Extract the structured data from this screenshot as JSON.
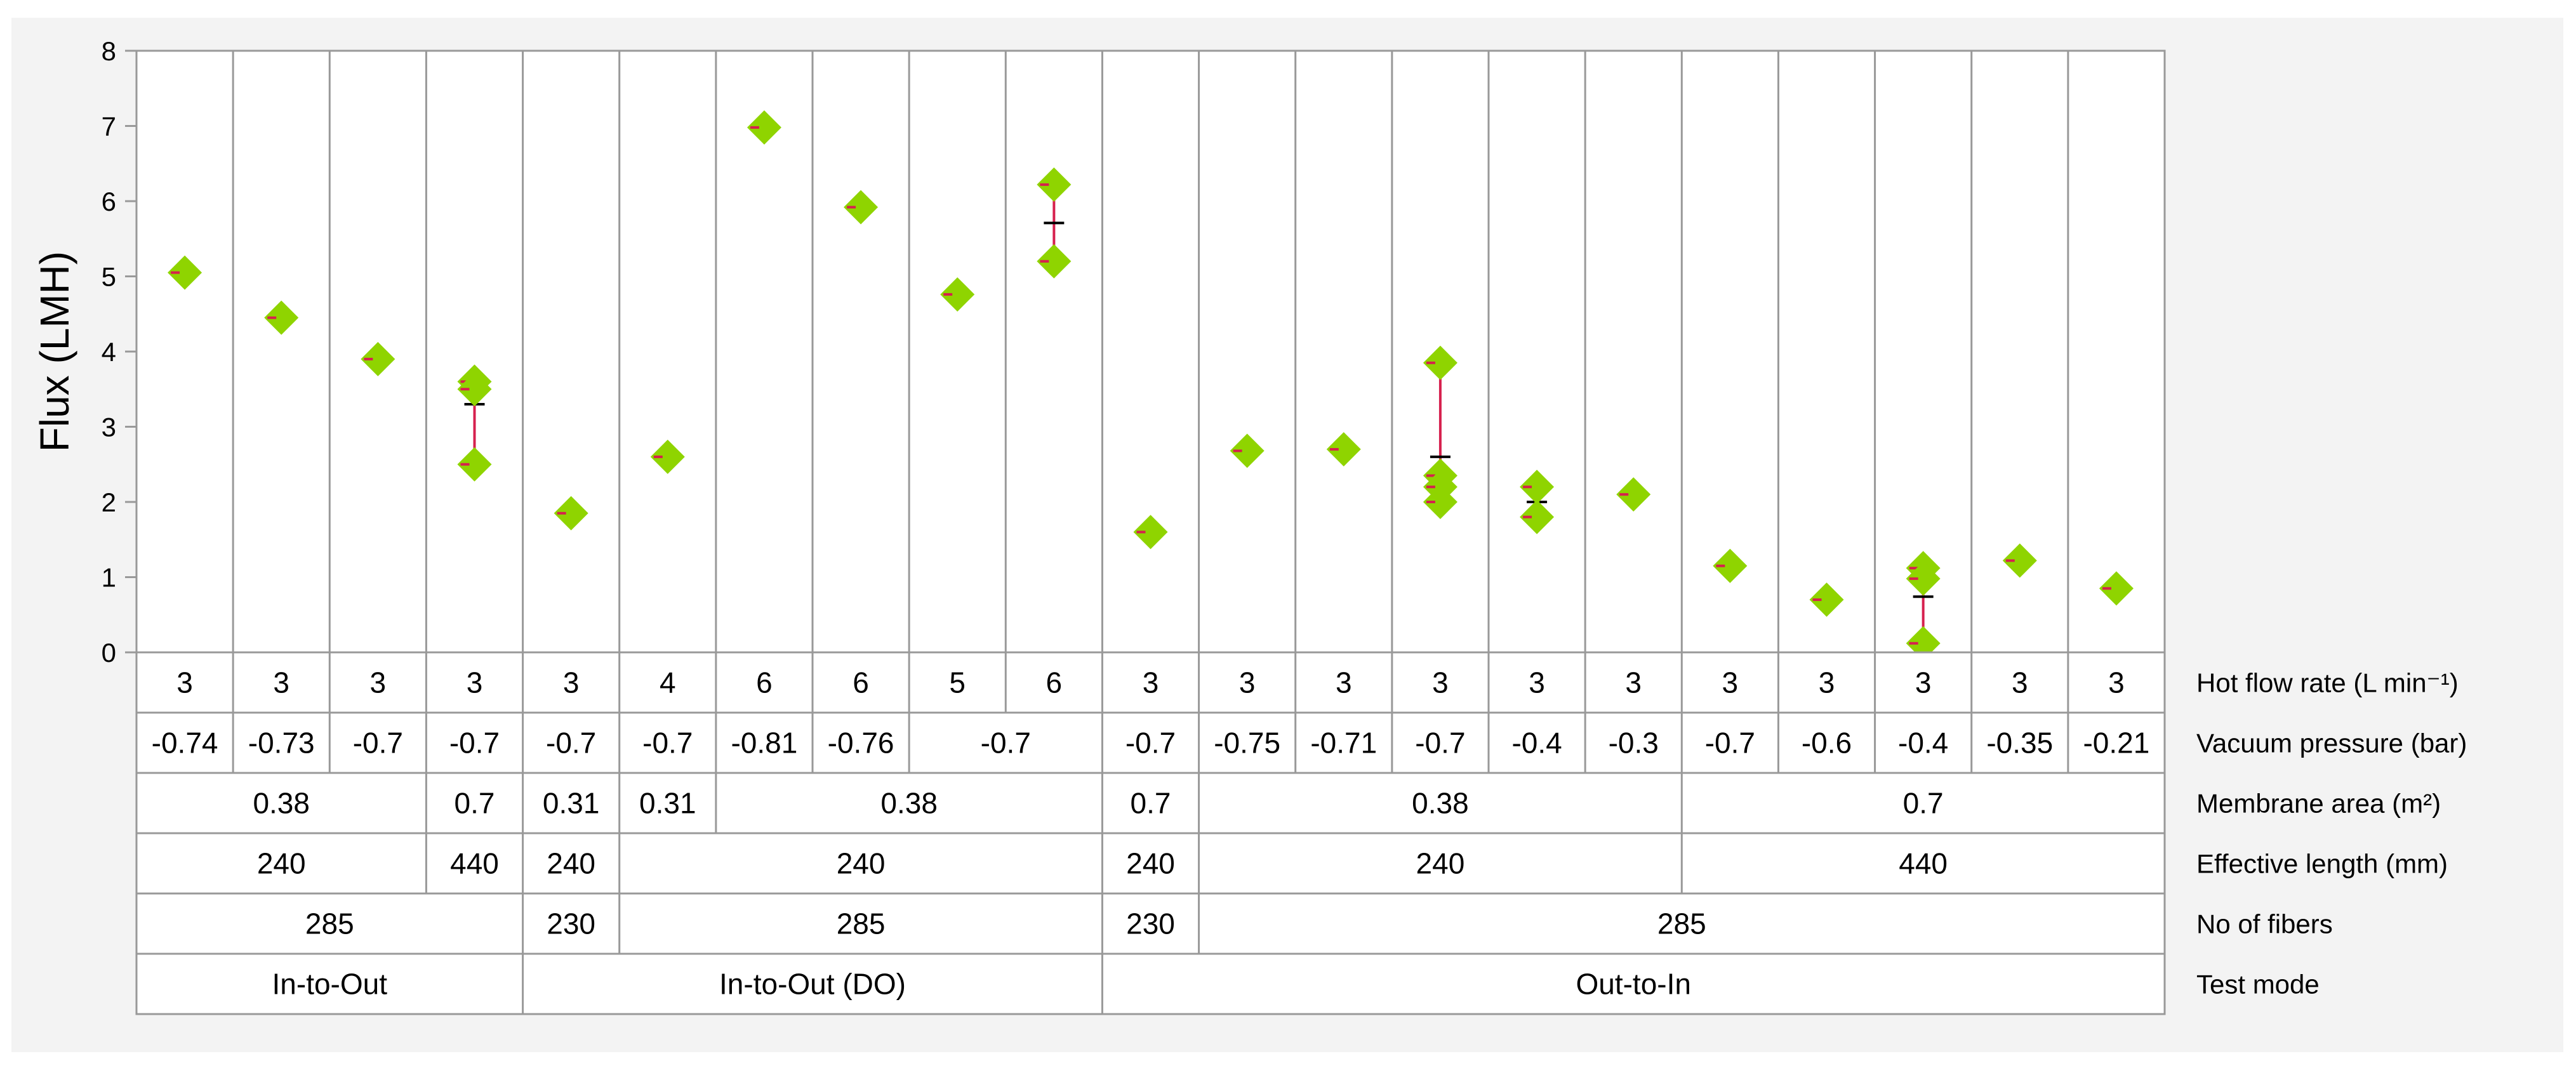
{
  "chart_data": {
    "type": "scatter",
    "ylabel": "Flux (LMH)",
    "ylim": [
      0,
      8
    ],
    "yticks": [
      "0",
      "1",
      "2",
      "3",
      "4",
      "5",
      "6",
      "7",
      "8"
    ],
    "grid": "vertical separators between configurations",
    "colors": {
      "marker": "#8fd400",
      "error_bar": "#d6204e",
      "mean_tick": "#000000",
      "frame": "#999999"
    },
    "columns": [
      {
        "points": [
          5.05
        ]
      },
      {
        "points": [
          4.45
        ]
      },
      {
        "points": [
          3.9
        ]
      },
      {
        "points": [
          3.6,
          3.5,
          2.5
        ],
        "mean": 3.3,
        "range": [
          2.5,
          3.6
        ]
      },
      {
        "points": [
          1.85
        ]
      },
      {
        "points": [
          2.6
        ]
      },
      {
        "points": [
          6.98
        ]
      },
      {
        "points": [
          5.92
        ]
      },
      {
        "points": [
          4.76
        ]
      },
      {
        "points": [
          6.22,
          5.2
        ],
        "mean": 5.71,
        "range": [
          5.2,
          6.22
        ]
      },
      {
        "points": [
          1.6
        ]
      },
      {
        "points": [
          2.68
        ]
      },
      {
        "points": [
          2.7
        ]
      },
      {
        "points": [
          3.85,
          2.35,
          2.2,
          2.0
        ],
        "mean": 2.6,
        "range": [
          2.0,
          3.85
        ]
      },
      {
        "points": [
          2.2,
          1.8
        ],
        "mean": 2.0,
        "range": [
          1.8,
          2.2
        ]
      },
      {
        "points": [
          2.1
        ]
      },
      {
        "points": [
          1.15
        ]
      },
      {
        "points": [
          0.7
        ]
      },
      {
        "points": [
          1.12,
          0.98,
          0.12
        ],
        "mean": 0.74,
        "range": [
          0.12,
          1.1
        ]
      },
      {
        "points": [
          1.22
        ]
      },
      {
        "points": [
          0.85
        ]
      }
    ],
    "factor_rows": [
      {
        "label": "Hot flow rate (L min⁻¹)",
        "groups": [
          {
            "text": "3",
            "span": 1
          },
          {
            "text": "3",
            "span": 1
          },
          {
            "text": "3",
            "span": 1
          },
          {
            "text": "3",
            "span": 1
          },
          {
            "text": "3",
            "span": 1
          },
          {
            "text": "4",
            "span": 1
          },
          {
            "text": "6",
            "span": 1
          },
          {
            "text": "6",
            "span": 1
          },
          {
            "text": "5",
            "span": 1
          },
          {
            "text": "6",
            "span": 1
          },
          {
            "text": "3",
            "span": 1
          },
          {
            "text": "3",
            "span": 1
          },
          {
            "text": "3",
            "span": 1
          },
          {
            "text": "3",
            "span": 1
          },
          {
            "text": "3",
            "span": 1
          },
          {
            "text": "3",
            "span": 1
          },
          {
            "text": "3",
            "span": 1
          },
          {
            "text": "3",
            "span": 1
          },
          {
            "text": "3",
            "span": 1
          },
          {
            "text": "3",
            "span": 1
          },
          {
            "text": "3",
            "span": 1
          }
        ]
      },
      {
        "label": "Vacuum pressure (bar)",
        "groups": [
          {
            "text": "-0.74",
            "span": 1
          },
          {
            "text": "-0.73",
            "span": 1
          },
          {
            "text": "-0.7",
            "span": 1
          },
          {
            "text": "-0.7",
            "span": 1
          },
          {
            "text": "-0.7",
            "span": 1
          },
          {
            "text": "-0.7",
            "span": 1
          },
          {
            "text": "-0.81",
            "span": 1
          },
          {
            "text": "-0.76",
            "span": 1
          },
          {
            "text": "-0.7",
            "span": 2
          },
          {
            "text": "-0.7",
            "span": 1
          },
          {
            "text": "-0.75",
            "span": 1
          },
          {
            "text": "-0.71",
            "span": 1
          },
          {
            "text": "-0.7",
            "span": 1
          },
          {
            "text": "-0.4",
            "span": 1
          },
          {
            "text": "-0.3",
            "span": 1
          },
          {
            "text": "-0.7",
            "span": 1
          },
          {
            "text": "-0.6",
            "span": 1
          },
          {
            "text": "-0.4",
            "span": 1
          },
          {
            "text": "-0.35",
            "span": 1
          },
          {
            "text": "-0.21",
            "span": 1
          }
        ]
      },
      {
        "label": "Membrane area (m²)",
        "groups": [
          {
            "text": "0.38",
            "span": 3
          },
          {
            "text": "0.7",
            "span": 1
          },
          {
            "text": "0.31",
            "span": 1
          },
          {
            "text": "0.31",
            "span": 1
          },
          {
            "text": "0.38",
            "span": 4
          },
          {
            "text": "0.7",
            "span": 1
          },
          {
            "text": "0.38",
            "span": 5
          },
          {
            "text": "0.7",
            "span": 5
          }
        ]
      },
      {
        "label": "Effective length (mm)",
        "groups": [
          {
            "text": "240",
            "span": 3
          },
          {
            "text": "440",
            "span": 1
          },
          {
            "text": "240",
            "span": 1
          },
          {
            "text": "240",
            "span": 5
          },
          {
            "text": "240",
            "span": 1
          },
          {
            "text": "240",
            "span": 5
          },
          {
            "text": "440",
            "span": 5
          }
        ]
      },
      {
        "label": "No of fibers",
        "groups": [
          {
            "text": "285",
            "span": 4
          },
          {
            "text": "230",
            "span": 1
          },
          {
            "text": "285",
            "span": 5
          },
          {
            "text": "230",
            "span": 1
          },
          {
            "text": "285",
            "span": 10
          }
        ]
      },
      {
        "label": "Test mode",
        "groups": [
          {
            "text": "In-to-Out",
            "span": 4
          },
          {
            "text": "In-to-Out (DO)",
            "span": 6
          },
          {
            "text": "Out-to-In",
            "span": 11
          }
        ]
      }
    ]
  }
}
